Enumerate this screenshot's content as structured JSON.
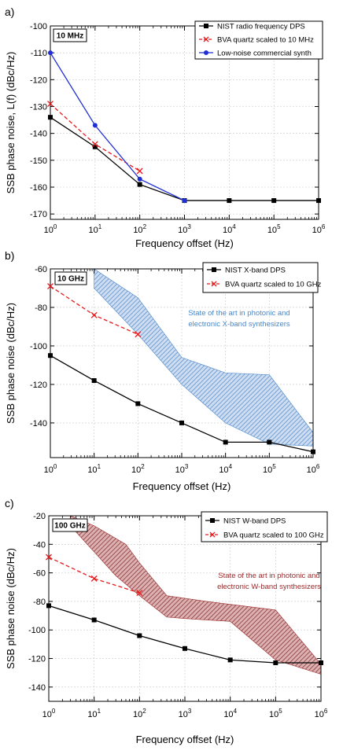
{
  "chart_data": [
    {
      "type": "line",
      "panel_label": "a)",
      "freq_label": "10 MHz",
      "xlabel": "Frequency offset (Hz)",
      "ylabel": "SSB phase noise, L(f) (dBc/Hz)",
      "xscale": "log",
      "xlim": [
        1,
        1000000
      ],
      "ylim": [
        -172,
        -100
      ],
      "yticks": [
        -100,
        -110,
        -120,
        -130,
        -140,
        -150,
        -160,
        -170
      ],
      "xticks": [
        "10^0",
        "10^1",
        "10^2",
        "10^3",
        "10^4",
        "10^5",
        "10^6"
      ],
      "grid": true,
      "legend_position": "top-right",
      "series": [
        {
          "name": "NIST radio frequency DPS",
          "color": "#000000",
          "marker": "square",
          "dash": false,
          "x": [
            1,
            10,
            100,
            1000,
            10000,
            100000,
            1000000
          ],
          "y": [
            -134,
            -145,
            -159,
            -165,
            -165,
            -165,
            -165
          ]
        },
        {
          "name": "BVA quartz scaled to 10 MHz",
          "color": "#e41a1c",
          "marker": "x",
          "dash": true,
          "x": [
            1,
            10,
            100
          ],
          "y": [
            -129,
            -144,
            -154
          ]
        },
        {
          "name": "Low-noise commercial synth",
          "color": "#1f2fd6",
          "marker": "circle",
          "dash": false,
          "x": [
            1,
            10,
            100,
            1000
          ],
          "y": [
            -110,
            -137,
            -157,
            -165
          ]
        }
      ]
    },
    {
      "type": "line",
      "panel_label": "b)",
      "freq_label": "10 GHz",
      "xlabel": "Frequency offset (Hz)",
      "ylabel": "SSB phase noise (dBc/Hz)",
      "xscale": "log",
      "xlim": [
        1,
        1000000
      ],
      "ylim": [
        -158,
        -60
      ],
      "yticks": [
        -60,
        -80,
        -100,
        -120,
        -140
      ],
      "xticks": [
        "10^0",
        "10^1",
        "10^2",
        "10^3",
        "10^4",
        "10^5",
        "10^6"
      ],
      "grid": true,
      "legend_position": "top-right",
      "series": [
        {
          "name": "NIST X-band DPS",
          "color": "#000000",
          "marker": "square",
          "dash": false,
          "x": [
            1,
            10,
            100,
            1000,
            10000,
            100000,
            1000000
          ],
          "y": [
            -105,
            -118,
            -130,
            -140,
            -150,
            -150,
            -155
          ]
        },
        {
          "name": "BVA quartz scaled to 10 GHz",
          "color": "#e41a1c",
          "marker": "x",
          "dash": true,
          "x": [
            1,
            10,
            100
          ],
          "y": [
            -69,
            -84,
            -94
          ]
        }
      ],
      "region": {
        "label_lines": [
          "State of the art in photonic and",
          "electronic X-band synthesizers"
        ],
        "color": "#4a86c8",
        "x": [
          10,
          100,
          1000,
          10000,
          100000,
          1000000,
          1000000,
          100000,
          10000,
          1000,
          100,
          10
        ],
        "y": [
          -60,
          -75,
          -106,
          -114,
          -115,
          -145,
          -152,
          -151,
          -140,
          -120,
          -94,
          -70
        ]
      }
    },
    {
      "type": "line",
      "panel_label": "c)",
      "freq_label": "100 GHz",
      "xlabel": "Frequency offset (Hz)",
      "ylabel": "SSB phase noise (dBc/Hz)",
      "xscale": "log",
      "xlim": [
        1,
        1000000
      ],
      "ylim": [
        -150,
        -20
      ],
      "yticks": [
        -20,
        -40,
        -60,
        -80,
        -100,
        -120,
        -140
      ],
      "xticks": [
        "10^0",
        "10^1",
        "10^2",
        "10^3",
        "10^4",
        "10^5",
        "10^6"
      ],
      "grid": true,
      "legend_position": "top-right",
      "series": [
        {
          "name": "NIST W-band DPS",
          "color": "#000000",
          "marker": "square",
          "dash": false,
          "x": [
            1,
            10,
            100,
            1000,
            10000,
            100000,
            1000000
          ],
          "y": [
            -83,
            -93,
            -104,
            -113,
            -121,
            -123,
            -123
          ]
        },
        {
          "name": "BVA quartz scaled to 100 GHz",
          "color": "#e41a1c",
          "marker": "x",
          "dash": true,
          "x": [
            1,
            10,
            100
          ],
          "y": [
            -49,
            -64,
            -74
          ]
        }
      ],
      "region": {
        "label_lines": [
          "State of the art in photonic and",
          "electronic W-band synthesizers"
        ],
        "color": "#9b2a2a",
        "x": [
          3,
          10,
          50,
          100,
          400,
          3000,
          100000,
          1000000,
          1000000,
          100000,
          10000,
          1000,
          400,
          100,
          30,
          3
        ],
        "y": [
          -20,
          -27,
          -40,
          -53,
          -76,
          -80,
          -86,
          -124,
          -131,
          -121,
          -94,
          -92,
          -91,
          -76,
          -62,
          -27
        ]
      }
    }
  ]
}
